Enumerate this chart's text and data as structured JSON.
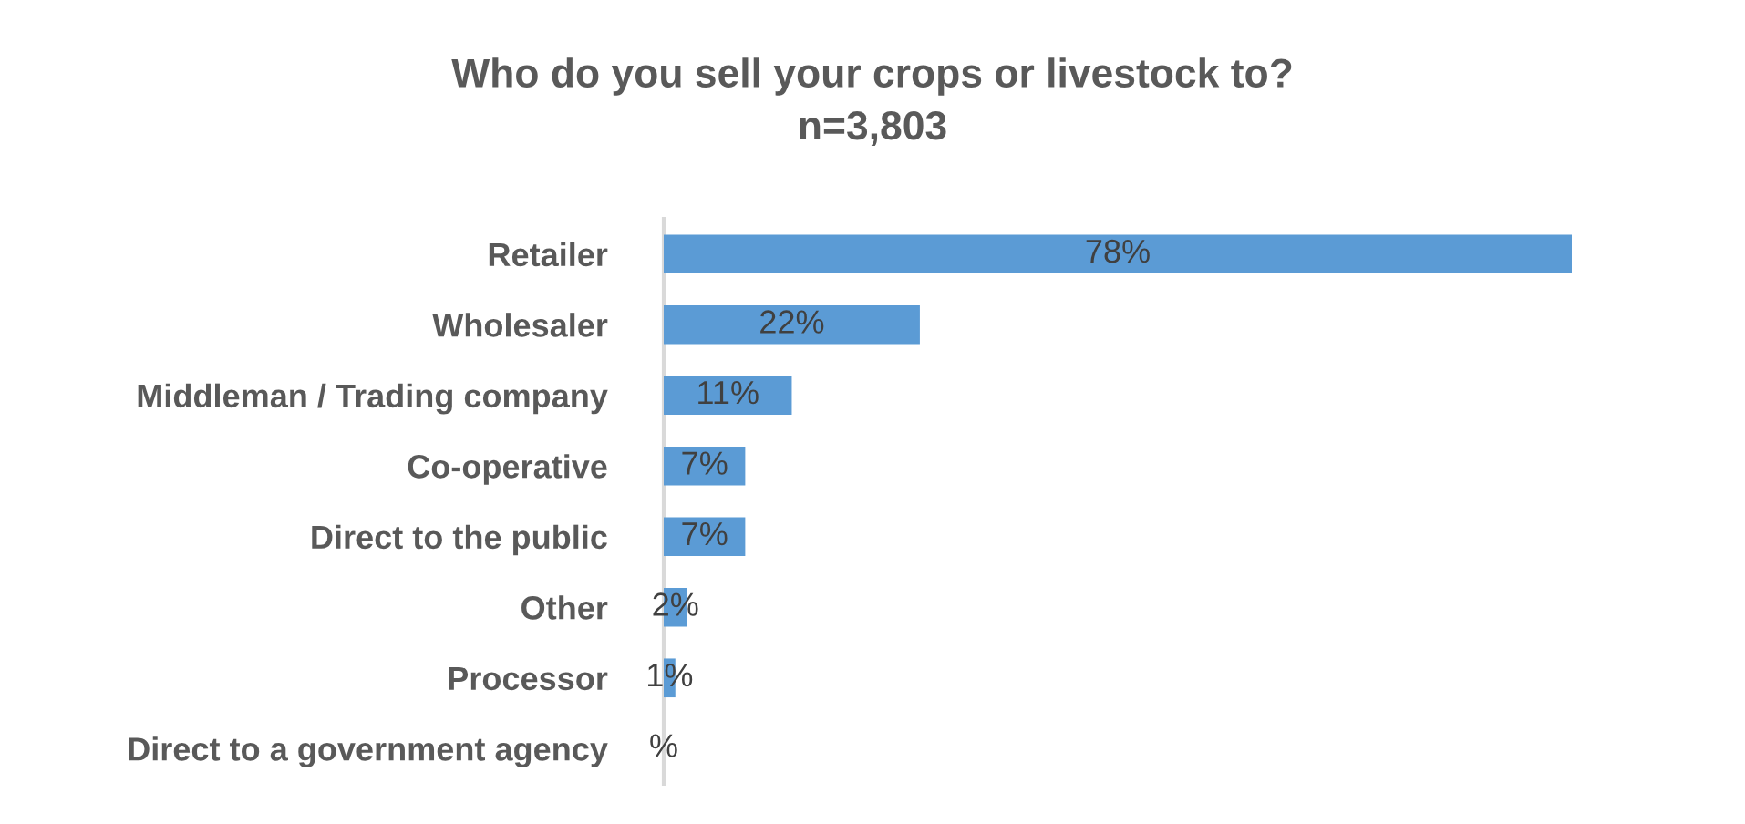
{
  "chart_data": {
    "type": "bar",
    "orientation": "horizontal",
    "title": "Who do you sell your crops or livestock to?\nn=3,803",
    "categories": [
      "Retailer",
      "Wholesaler",
      "Middleman / Trading company",
      "Co-operative",
      "Direct to the public",
      "Other",
      "Processor",
      "Direct to a government agency"
    ],
    "values": [
      78,
      22,
      11,
      7,
      7,
      2,
      1,
      0
    ],
    "value_labels": [
      "78%",
      "22%",
      "11%",
      "7%",
      "7%",
      "2%",
      "1%",
      "%"
    ],
    "color": "#5b9bd5"
  }
}
